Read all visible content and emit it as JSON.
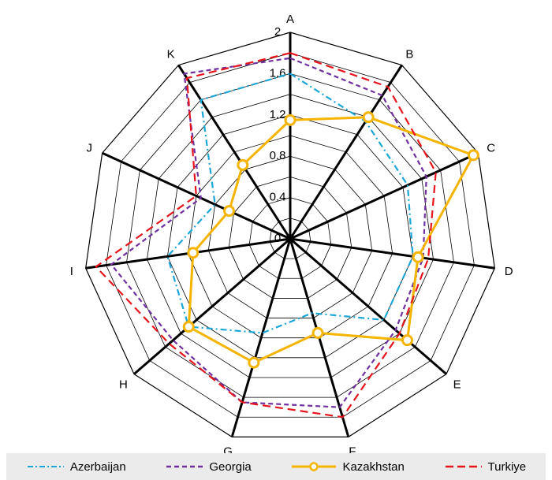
{
  "chart_data": {
    "type": "radar",
    "axes": [
      "A",
      "B",
      "C",
      "D",
      "E",
      "F",
      "G",
      "H",
      "I",
      "J",
      "K"
    ],
    "ticks": [
      "0",
      "0.4",
      "0.8",
      "1.2",
      "1.6",
      "2"
    ],
    "rmax": 2.0,
    "series": [
      {
        "name": "Azerbaijan",
        "color": "#1aa7d8",
        "style": "dashdot",
        "values": [
          1.6,
          1.35,
          1.25,
          1.2,
          1.2,
          0.75,
          0.95,
          1.3,
          1.2,
          0.8,
          1.6
        ]
      },
      {
        "name": "Georgia",
        "color": "#7030a0",
        "style": "dash",
        "values": [
          1.75,
          1.65,
          1.45,
          1.3,
          1.35,
          1.7,
          1.65,
          1.5,
          1.75,
          0.95,
          1.9
        ]
      },
      {
        "name": "Kazakhstan",
        "color": "#f5b400",
        "style": "solid-marker",
        "values": [
          1.15,
          1.4,
          1.95,
          1.25,
          1.5,
          0.95,
          1.25,
          1.3,
          0.95,
          0.65,
          0.85
        ]
      },
      {
        "name": "Turkiye",
        "color": "#e8141c",
        "style": "longdash",
        "values": [
          1.8,
          1.75,
          1.55,
          1.35,
          1.4,
          1.8,
          1.65,
          1.55,
          1.9,
          1.0,
          1.85
        ]
      }
    ]
  }
}
